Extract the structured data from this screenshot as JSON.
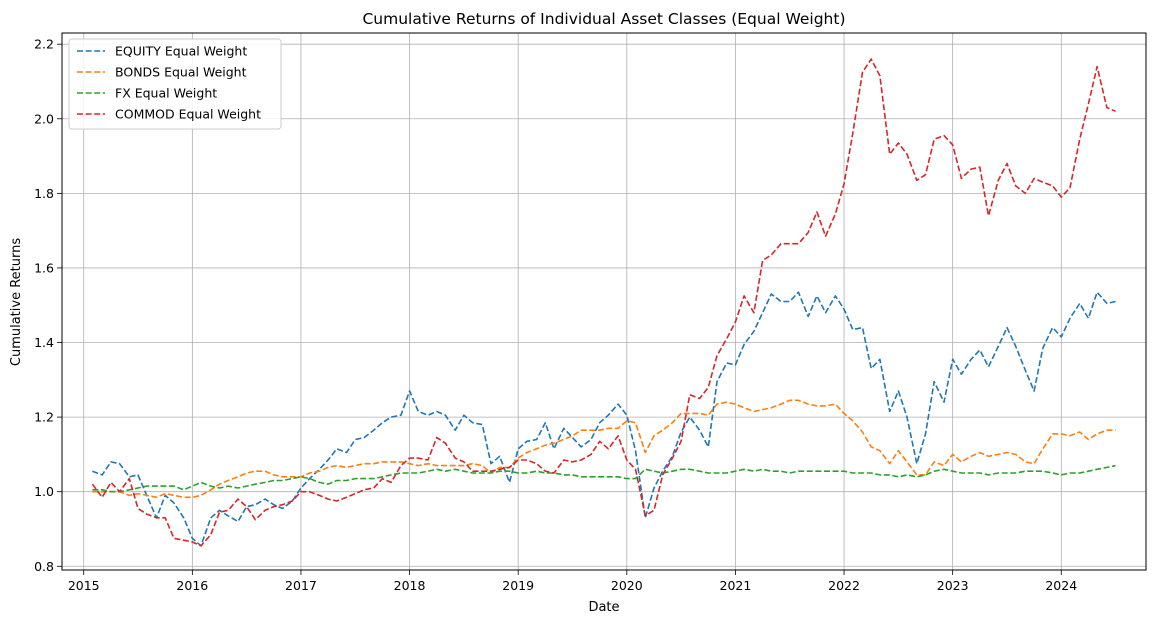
{
  "chart_data": {
    "type": "line",
    "title": "Cumulative Returns of Individual Asset Classes (Equal Weight)",
    "xlabel": "Date",
    "ylabel": "Cumulative Returns",
    "xlim": [
      2014.8,
      2024.78
    ],
    "ylim": [
      0.79,
      2.23
    ],
    "x_ticks": [
      2015,
      2016,
      2017,
      2018,
      2019,
      2020,
      2021,
      2022,
      2023,
      2024
    ],
    "y_ticks": [
      0.8,
      1.0,
      1.2,
      1.4,
      1.6,
      1.8,
      2.0,
      2.2
    ],
    "y_tick_labels": [
      "0.8",
      "1.0",
      "1.2",
      "1.4",
      "1.6",
      "1.8",
      "2.0",
      "2.2"
    ],
    "grid": true,
    "legend_position": "top-left",
    "line_style": "dashed",
    "series": [
      {
        "name": "EQUITY Equal Weight",
        "color": "#1f77b4",
        "x": [
          2015.08,
          2015.17,
          2015.25,
          2015.33,
          2015.42,
          2015.5,
          2015.58,
          2015.67,
          2015.75,
          2015.83,
          2015.92,
          2016.0,
          2016.08,
          2016.17,
          2016.25,
          2016.33,
          2016.42,
          2016.5,
          2016.58,
          2016.67,
          2016.75,
          2016.83,
          2016.92,
          2017.0,
          2017.08,
          2017.17,
          2017.25,
          2017.33,
          2017.42,
          2017.5,
          2017.58,
          2017.67,
          2017.75,
          2017.83,
          2017.92,
          2018.0,
          2018.08,
          2018.17,
          2018.25,
          2018.33,
          2018.42,
          2018.5,
          2018.58,
          2018.67,
          2018.75,
          2018.83,
          2018.92,
          2019.0,
          2019.08,
          2019.17,
          2019.25,
          2019.33,
          2019.42,
          2019.5,
          2019.58,
          2019.67,
          2019.75,
          2019.83,
          2019.92,
          2020.0,
          2020.08,
          2020.17,
          2020.25,
          2020.33,
          2020.42,
          2020.5,
          2020.58,
          2020.67,
          2020.75,
          2020.83,
          2020.92,
          2021.0,
          2021.08,
          2021.17,
          2021.25,
          2021.33,
          2021.42,
          2021.5,
          2021.58,
          2021.67,
          2021.75,
          2021.83,
          2021.92,
          2022.0,
          2022.08,
          2022.17,
          2022.25,
          2022.33,
          2022.42,
          2022.5,
          2022.58,
          2022.67,
          2022.75,
          2022.83,
          2022.92,
          2023.0,
          2023.08,
          2023.17,
          2023.25,
          2023.33,
          2023.42,
          2023.5,
          2023.58,
          2023.67,
          2023.75,
          2023.83,
          2023.92,
          2024.0,
          2024.08,
          2024.17,
          2024.25,
          2024.33,
          2024.42,
          2024.5
        ],
        "values": [
          1.055,
          1.045,
          1.08,
          1.075,
          1.04,
          1.045,
          0.99,
          0.93,
          0.99,
          0.97,
          0.93,
          0.875,
          0.855,
          0.93,
          0.95,
          0.935,
          0.92,
          0.96,
          0.965,
          0.98,
          0.965,
          0.955,
          0.975,
          1.01,
          1.035,
          1.06,
          1.085,
          1.115,
          1.105,
          1.14,
          1.145,
          1.165,
          1.185,
          1.2,
          1.205,
          1.27,
          1.215,
          1.205,
          1.215,
          1.205,
          1.165,
          1.205,
          1.185,
          1.18,
          1.075,
          1.095,
          1.025,
          1.115,
          1.135,
          1.14,
          1.185,
          1.115,
          1.17,
          1.145,
          1.12,
          1.14,
          1.185,
          1.205,
          1.235,
          1.205,
          1.11,
          0.93,
          1.01,
          1.055,
          1.095,
          1.16,
          1.2,
          1.165,
          1.12,
          1.295,
          1.345,
          1.34,
          1.395,
          1.43,
          1.48,
          1.53,
          1.51,
          1.51,
          1.535,
          1.47,
          1.525,
          1.48,
          1.525,
          1.49,
          1.435,
          1.44,
          1.33,
          1.355,
          1.215,
          1.27,
          1.2,
          1.075,
          1.155,
          1.295,
          1.24,
          1.355,
          1.315,
          1.355,
          1.38,
          1.335,
          1.39,
          1.44,
          1.39,
          1.325,
          1.27,
          1.385,
          1.44,
          1.415,
          1.465,
          1.505,
          1.465,
          1.535,
          1.505,
          1.51
        ]
      },
      {
        "name": "BONDS Equal Weight",
        "color": "#ff7f0e",
        "x": [
          2015.08,
          2015.17,
          2015.25,
          2015.33,
          2015.42,
          2015.5,
          2015.58,
          2015.67,
          2015.75,
          2015.83,
          2015.92,
          2016.0,
          2016.08,
          2016.17,
          2016.25,
          2016.33,
          2016.42,
          2016.5,
          2016.58,
          2016.67,
          2016.75,
          2016.83,
          2016.92,
          2017.0,
          2017.08,
          2017.17,
          2017.25,
          2017.33,
          2017.42,
          2017.5,
          2017.58,
          2017.67,
          2017.75,
          2017.83,
          2017.92,
          2018.0,
          2018.08,
          2018.17,
          2018.25,
          2018.33,
          2018.42,
          2018.5,
          2018.58,
          2018.67,
          2018.75,
          2018.83,
          2018.92,
          2019.0,
          2019.08,
          2019.17,
          2019.25,
          2019.33,
          2019.42,
          2019.5,
          2019.58,
          2019.67,
          2019.75,
          2019.83,
          2019.92,
          2020.0,
          2020.08,
          2020.17,
          2020.25,
          2020.33,
          2020.42,
          2020.5,
          2020.58,
          2020.67,
          2020.75,
          2020.83,
          2020.92,
          2021.0,
          2021.08,
          2021.17,
          2021.25,
          2021.33,
          2021.42,
          2021.5,
          2021.58,
          2021.67,
          2021.75,
          2021.83,
          2021.92,
          2022.0,
          2022.08,
          2022.17,
          2022.25,
          2022.33,
          2022.42,
          2022.5,
          2022.58,
          2022.67,
          2022.75,
          2022.83,
          2022.92,
          2023.0,
          2023.08,
          2023.17,
          2023.25,
          2023.33,
          2023.42,
          2023.5,
          2023.58,
          2023.67,
          2023.75,
          2023.83,
          2023.92,
          2024.0,
          2024.08,
          2024.17,
          2024.25,
          2024.33,
          2024.42,
          2024.5
        ],
        "values": [
          1.0,
          1.0,
          1.0,
          1.0,
          0.99,
          0.995,
          0.99,
          0.985,
          0.995,
          0.99,
          0.985,
          0.985,
          0.99,
          1.005,
          1.02,
          1.03,
          1.04,
          1.05,
          1.055,
          1.055,
          1.045,
          1.04,
          1.04,
          1.04,
          1.05,
          1.055,
          1.065,
          1.07,
          1.065,
          1.07,
          1.075,
          1.075,
          1.08,
          1.08,
          1.08,
          1.075,
          1.07,
          1.075,
          1.07,
          1.07,
          1.07,
          1.07,
          1.075,
          1.07,
          1.05,
          1.065,
          1.065,
          1.09,
          1.105,
          1.115,
          1.125,
          1.13,
          1.14,
          1.15,
          1.165,
          1.165,
          1.165,
          1.17,
          1.17,
          1.19,
          1.185,
          1.105,
          1.15,
          1.165,
          1.185,
          1.21,
          1.21,
          1.21,
          1.205,
          1.235,
          1.24,
          1.235,
          1.225,
          1.215,
          1.22,
          1.225,
          1.235,
          1.245,
          1.245,
          1.235,
          1.23,
          1.23,
          1.235,
          1.21,
          1.19,
          1.16,
          1.12,
          1.11,
          1.075,
          1.11,
          1.08,
          1.045,
          1.045,
          1.08,
          1.07,
          1.1,
          1.08,
          1.095,
          1.105,
          1.095,
          1.1,
          1.105,
          1.1,
          1.08,
          1.075,
          1.115,
          1.155,
          1.155,
          1.15,
          1.16,
          1.14,
          1.155,
          1.165,
          1.165
        ]
      },
      {
        "name": "FX Equal Weight",
        "color": "#2ca02c",
        "x": [
          2015.08,
          2015.17,
          2015.25,
          2015.33,
          2015.42,
          2015.5,
          2015.58,
          2015.67,
          2015.75,
          2015.83,
          2015.92,
          2016.0,
          2016.08,
          2016.17,
          2016.25,
          2016.33,
          2016.42,
          2016.5,
          2016.58,
          2016.67,
          2016.75,
          2016.83,
          2016.92,
          2017.0,
          2017.08,
          2017.17,
          2017.25,
          2017.33,
          2017.42,
          2017.5,
          2017.58,
          2017.67,
          2017.75,
          2017.83,
          2017.92,
          2018.0,
          2018.08,
          2018.17,
          2018.25,
          2018.33,
          2018.42,
          2018.5,
          2018.58,
          2018.67,
          2018.75,
          2018.83,
          2018.92,
          2019.0,
          2019.08,
          2019.17,
          2019.25,
          2019.33,
          2019.42,
          2019.5,
          2019.58,
          2019.67,
          2019.75,
          2019.83,
          2019.92,
          2020.0,
          2020.08,
          2020.17,
          2020.25,
          2020.33,
          2020.42,
          2020.5,
          2020.58,
          2020.67,
          2020.75,
          2020.83,
          2020.92,
          2021.0,
          2021.08,
          2021.17,
          2021.25,
          2021.33,
          2021.42,
          2021.5,
          2021.58,
          2021.67,
          2021.75,
          2021.83,
          2021.92,
          2022.0,
          2022.08,
          2022.17,
          2022.25,
          2022.33,
          2022.42,
          2022.5,
          2022.58,
          2022.67,
          2022.75,
          2022.83,
          2022.92,
          2023.0,
          2023.08,
          2023.17,
          2023.25,
          2023.33,
          2023.42,
          2023.5,
          2023.58,
          2023.67,
          2023.75,
          2023.83,
          2023.92,
          2024.0,
          2024.08,
          2024.17,
          2024.25,
          2024.33,
          2024.42,
          2024.5
        ],
        "values": [
          1.005,
          1.005,
          1.0,
          1.0,
          1.005,
          1.01,
          1.015,
          1.015,
          1.015,
          1.015,
          1.005,
          1.015,
          1.025,
          1.015,
          1.01,
          1.015,
          1.01,
          1.015,
          1.02,
          1.025,
          1.03,
          1.03,
          1.035,
          1.04,
          1.035,
          1.025,
          1.02,
          1.03,
          1.03,
          1.035,
          1.035,
          1.035,
          1.04,
          1.045,
          1.05,
          1.05,
          1.05,
          1.055,
          1.06,
          1.055,
          1.06,
          1.055,
          1.05,
          1.05,
          1.05,
          1.055,
          1.055,
          1.05,
          1.05,
          1.055,
          1.05,
          1.05,
          1.045,
          1.045,
          1.04,
          1.04,
          1.04,
          1.04,
          1.04,
          1.035,
          1.035,
          1.06,
          1.055,
          1.05,
          1.055,
          1.06,
          1.06,
          1.055,
          1.05,
          1.05,
          1.05,
          1.055,
          1.06,
          1.055,
          1.06,
          1.055,
          1.055,
          1.05,
          1.055,
          1.055,
          1.055,
          1.055,
          1.055,
          1.055,
          1.05,
          1.05,
          1.05,
          1.045,
          1.045,
          1.04,
          1.045,
          1.04,
          1.045,
          1.055,
          1.06,
          1.055,
          1.05,
          1.05,
          1.05,
          1.045,
          1.05,
          1.05,
          1.05,
          1.055,
          1.055,
          1.055,
          1.05,
          1.045,
          1.05,
          1.05,
          1.055,
          1.06,
          1.065,
          1.07
        ]
      },
      {
        "name": "COMMOD Equal Weight",
        "color": "#d62728",
        "x": [
          2015.08,
          2015.17,
          2015.25,
          2015.33,
          2015.42,
          2015.5,
          2015.58,
          2015.67,
          2015.75,
          2015.83,
          2015.92,
          2016.0,
          2016.08,
          2016.17,
          2016.25,
          2016.33,
          2016.42,
          2016.5,
          2016.58,
          2016.67,
          2016.75,
          2016.83,
          2016.92,
          2017.0,
          2017.08,
          2017.17,
          2017.25,
          2017.33,
          2017.42,
          2017.5,
          2017.58,
          2017.67,
          2017.75,
          2017.83,
          2017.92,
          2018.0,
          2018.08,
          2018.17,
          2018.25,
          2018.33,
          2018.42,
          2018.5,
          2018.58,
          2018.67,
          2018.75,
          2018.83,
          2018.92,
          2019.0,
          2019.08,
          2019.17,
          2019.25,
          2019.33,
          2019.42,
          2019.5,
          2019.58,
          2019.67,
          2019.75,
          2019.83,
          2019.92,
          2020.0,
          2020.08,
          2020.17,
          2020.25,
          2020.33,
          2020.42,
          2020.5,
          2020.58,
          2020.67,
          2020.75,
          2020.83,
          2020.92,
          2021.0,
          2021.08,
          2021.17,
          2021.25,
          2021.33,
          2021.42,
          2021.5,
          2021.58,
          2021.67,
          2021.75,
          2021.83,
          2021.92,
          2022.0,
          2022.08,
          2022.17,
          2022.25,
          2022.33,
          2022.42,
          2022.5,
          2022.58,
          2022.67,
          2022.75,
          2022.83,
          2022.92,
          2023.0,
          2023.08,
          2023.17,
          2023.25,
          2023.33,
          2023.42,
          2023.5,
          2023.58,
          2023.67,
          2023.75,
          2023.83,
          2023.92,
          2024.0,
          2024.08,
          2024.17,
          2024.25,
          2024.33,
          2024.42,
          2024.5
        ],
        "values": [
          1.02,
          0.985,
          1.025,
          1.0,
          1.035,
          0.955,
          0.94,
          0.93,
          0.93,
          0.875,
          0.87,
          0.865,
          0.855,
          0.885,
          0.945,
          0.95,
          0.98,
          0.96,
          0.925,
          0.95,
          0.96,
          0.965,
          0.975,
          1.0,
          1.0,
          0.99,
          0.98,
          0.975,
          0.985,
          0.995,
          1.005,
          1.01,
          1.035,
          1.025,
          1.07,
          1.09,
          1.09,
          1.085,
          1.145,
          1.13,
          1.09,
          1.08,
          1.055,
          1.055,
          1.055,
          1.06,
          1.065,
          1.085,
          1.085,
          1.075,
          1.055,
          1.05,
          1.085,
          1.08,
          1.085,
          1.1,
          1.135,
          1.115,
          1.15,
          1.085,
          1.06,
          0.935,
          0.95,
          1.045,
          1.09,
          1.135,
          1.26,
          1.25,
          1.28,
          1.365,
          1.41,
          1.455,
          1.525,
          1.48,
          1.62,
          1.635,
          1.665,
          1.665,
          1.665,
          1.695,
          1.75,
          1.685,
          1.745,
          1.825,
          1.96,
          2.125,
          2.16,
          2.115,
          1.905,
          1.935,
          1.905,
          1.835,
          1.85,
          1.945,
          1.955,
          1.93,
          1.84,
          1.865,
          1.87,
          1.74,
          1.835,
          1.88,
          1.82,
          1.8,
          1.84,
          1.83,
          1.82,
          1.79,
          1.815,
          1.945,
          2.04,
          2.14,
          2.03,
          2.02
        ]
      }
    ]
  }
}
